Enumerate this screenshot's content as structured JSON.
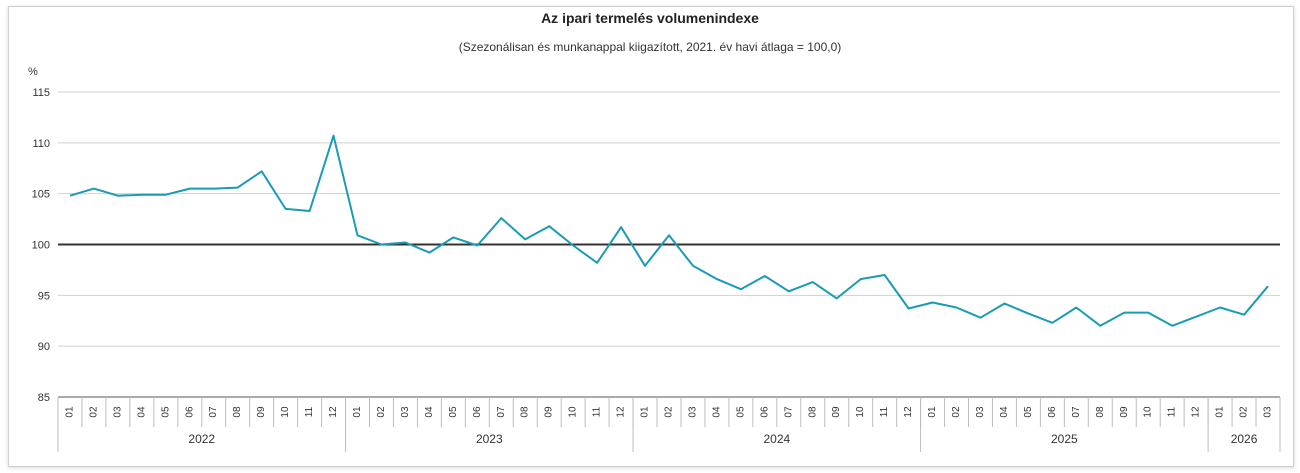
{
  "chart_data": {
    "type": "line",
    "title": "Az ipari termelés volumenindexe",
    "subtitle": "(Szezonálisan és munkanappal kiigazított, 2021. év havi átlaga = 100,0)",
    "ylabel": "%",
    "ylim": [
      85,
      115
    ],
    "yticks": [
      85,
      90,
      95,
      100,
      105,
      110,
      115
    ],
    "reference_line": 100,
    "grid": true,
    "line_color": "#1a9bb5",
    "years": [
      {
        "label": "2022",
        "months": 12
      },
      {
        "label": "2023",
        "months": 12
      },
      {
        "label": "2024",
        "months": 12
      },
      {
        "label": "2025",
        "months": 12
      },
      {
        "label": "2026",
        "months": 3
      }
    ],
    "categories": [
      "01",
      "02",
      "03",
      "04",
      "05",
      "06",
      "07",
      "08",
      "09",
      "10",
      "11",
      "12",
      "01",
      "02",
      "03",
      "04",
      "05",
      "06",
      "07",
      "08",
      "09",
      "10",
      "11",
      "12",
      "01",
      "02",
      "03",
      "04",
      "05",
      "06",
      "07",
      "08",
      "09",
      "10",
      "11",
      "12",
      "01",
      "02",
      "03",
      "04",
      "05",
      "06",
      "07",
      "08",
      "09",
      "10",
      "11",
      "12",
      "01",
      "02",
      "03"
    ],
    "values": [
      104.8,
      105.5,
      104.8,
      104.9,
      104.9,
      105.5,
      105.5,
      105.6,
      107.2,
      103.5,
      103.3,
      110.7,
      100.9,
      100.0,
      100.2,
      99.2,
      100.7,
      99.9,
      102.6,
      100.5,
      101.8,
      99.9,
      98.2,
      101.7,
      97.9,
      100.9,
      97.9,
      96.6,
      95.6,
      96.9,
      95.4,
      96.3,
      94.7,
      96.6,
      97.0,
      93.7,
      94.3,
      93.8,
      92.8,
      94.2,
      93.2,
      92.3,
      93.8,
      92.0,
      93.3,
      93.3,
      92.0,
      92.9,
      93.8,
      93.1,
      95.9
    ]
  }
}
